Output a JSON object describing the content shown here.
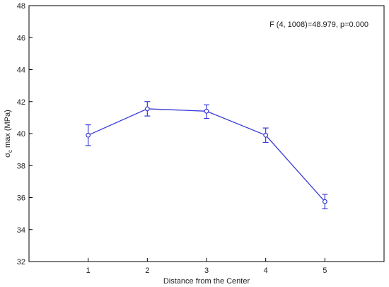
{
  "chart_data": {
    "type": "line",
    "title": "",
    "xlabel": "Distance from the Center",
    "ylabel": {
      "symbol": "σ",
      "subscript": "c",
      "rest": " max (MPa)"
    },
    "annotation": "F (4, 1008)=48.979, p=0.000",
    "x": [
      1,
      2,
      3,
      4,
      5
    ],
    "xlim": [
      0,
      6
    ],
    "xticks": [
      "1",
      "2",
      "3",
      "4",
      "5"
    ],
    "ylim": [
      32,
      48
    ],
    "yticks": [
      "32",
      "34",
      "36",
      "38",
      "40",
      "42",
      "44",
      "46",
      "48"
    ],
    "grid": false,
    "series": [
      {
        "values": [
          39.9,
          41.55,
          41.4,
          39.9,
          35.75
        ],
        "err_low": [
          39.25,
          41.1,
          40.95,
          39.45,
          35.3
        ],
        "err_high": [
          40.55,
          42.0,
          41.8,
          40.35,
          36.2
        ],
        "color": "#3a3ad6",
        "marker": "circle-open"
      }
    ]
  }
}
